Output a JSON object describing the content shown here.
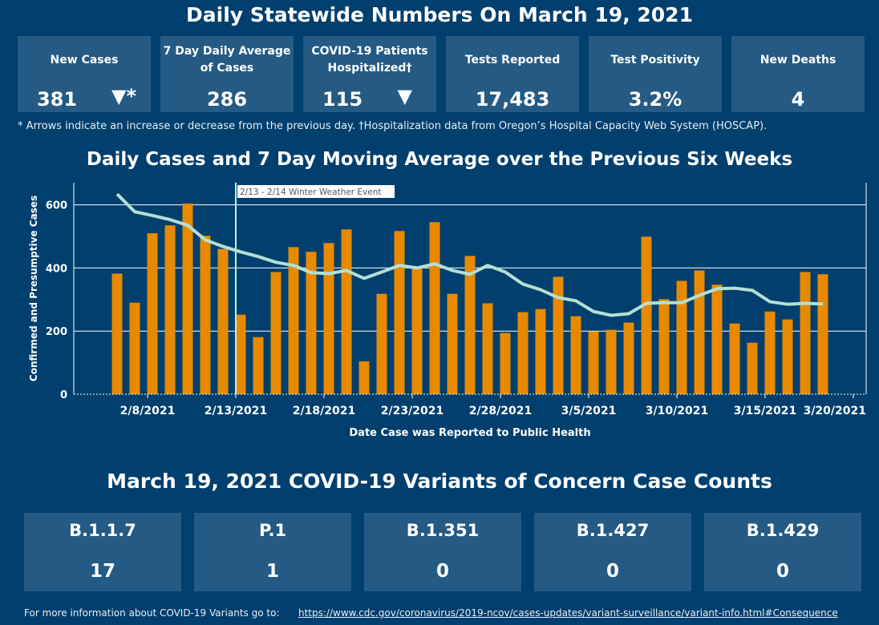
{
  "header": {
    "title": "Daily Statewide Numbers On March 19, 2021"
  },
  "cards": [
    {
      "label": "New Cases",
      "value": "381",
      "arrow": "▼*",
      "arrow_icon": "down-triangle"
    },
    {
      "label": "7 Day Daily Average of Cases",
      "value": "286"
    },
    {
      "label": "COVID-19 Patients Hospitalized†",
      "value": "115",
      "arrow": "▼",
      "arrow_icon": "down-triangle"
    },
    {
      "label": "Tests Reported",
      "value": "17,483"
    },
    {
      "label": "Test Positivity",
      "value": "3.2%"
    },
    {
      "label": "New Deaths",
      "value": "4"
    }
  ],
  "note": "* Arrows indicate an increase or decrease from the previous day. †Hospitalization data from Oregon’s Hospital Capacity Web System (HOSCAP).",
  "chart_data": {
    "type": "bar",
    "title": "Daily Cases and 7 Day Moving Average over the Previous Six Weeks",
    "xlabel": "Date Case was Reported to Public Health",
    "ylabel": "Confirmed and Presumptive Cases",
    "ylim": [
      0,
      670
    ],
    "yticks": [
      0,
      200,
      400,
      600
    ],
    "grid": true,
    "colors": {
      "bars": "#e88a00",
      "line": "#b4e0d4",
      "annotation": "#c8ebe2"
    },
    "categories": [
      "2/6",
      "2/7",
      "2/8",
      "2/9",
      "2/10",
      "2/11",
      "2/12",
      "2/13",
      "2/14",
      "2/15",
      "2/16",
      "2/17",
      "2/18",
      "2/19",
      "2/20",
      "2/21",
      "2/22",
      "2/23",
      "2/24",
      "2/25",
      "2/26",
      "2/27",
      "2/28",
      "3/1",
      "3/2",
      "3/3",
      "3/4",
      "3/5",
      "3/6",
      "3/7",
      "3/8",
      "3/9",
      "3/10",
      "3/11",
      "3/12",
      "3/13",
      "3/14",
      "3/15",
      "3/16",
      "3/17",
      "3/18"
    ],
    "series": [
      {
        "type": "bar",
        "values": [
          382,
          290,
          510,
          535,
          604,
          502,
          460,
          252,
          181,
          387,
          466,
          451,
          479,
          522,
          104,
          318,
          517,
          400,
          545,
          318,
          438,
          288,
          194,
          260,
          270,
          372,
          247,
          199,
          204,
          227,
          499,
          301,
          359,
          392,
          347,
          224,
          163,
          262,
          237,
          387,
          380
        ]
      },
      {
        "type": "line",
        "values": [
          634,
          578,
          566,
          553,
          535,
          489,
          468,
          451,
          436,
          418,
          408,
          385,
          382,
          392,
          367,
          387,
          408,
          400,
          413,
          392,
          380,
          408,
          387,
          349,
          331,
          306,
          296,
          262,
          250,
          255,
          288,
          290,
          290,
          313,
          334,
          336,
          329,
          293,
          285,
          288,
          286
        ]
      }
    ],
    "xticks": [
      "2/8/2021",
      "2/13/2021",
      "2/18/2021",
      "2/23/2021",
      "2/28/2021",
      "3/5/2021",
      "3/10/2021",
      "3/15/2021",
      "3/20/2021"
    ],
    "annotation": {
      "date": "2/13",
      "text": "2/13 - 2/14 Winter Weather Event"
    }
  },
  "variants": {
    "title": "March 19, 2021 COVID-19 Variants of Concern Case Counts",
    "items": [
      {
        "label": "B.1.1.7",
        "value": "17"
      },
      {
        "label": "P.1",
        "value": "1"
      },
      {
        "label": "B.1.351",
        "value": "0"
      },
      {
        "label": "B.1.427",
        "value": "0"
      },
      {
        "label": "B.1.429",
        "value": "0"
      }
    ]
  },
  "footer": {
    "text": "For more information about COVID-19 Variants go to:",
    "link": "https://www.cdc.gov/coronavirus/2019-ncov/cases-updates/variant-surveillance/variant-info.html#Consequence"
  }
}
